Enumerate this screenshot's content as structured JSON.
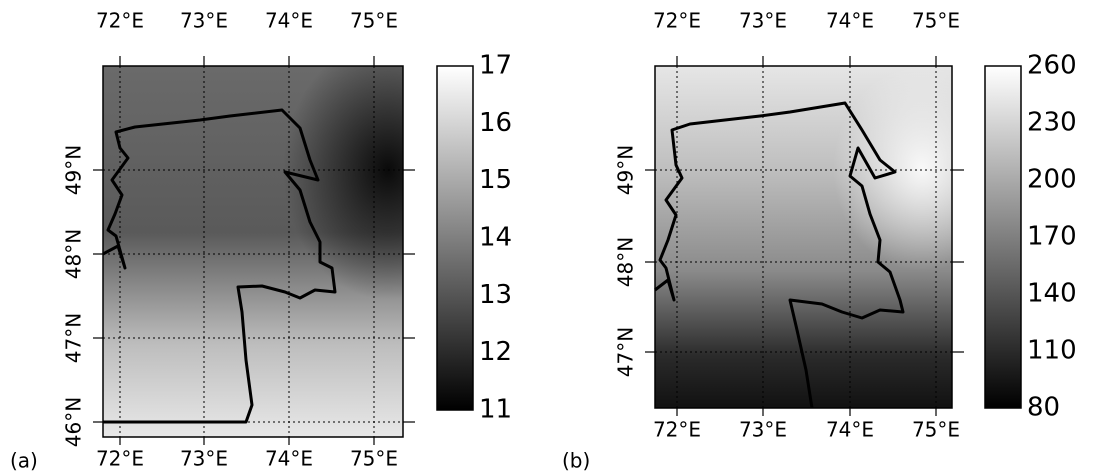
{
  "panels": [
    {
      "label": "(a)",
      "lon_top": [
        "72°E",
        "73°E",
        "74°E",
        "75°E"
      ],
      "lon_bottom": [
        "72°E",
        "73°E",
        "74°E",
        "75°E"
      ],
      "lat": [
        "49°N",
        "48°N",
        "47°N",
        "46°N"
      ],
      "colorbar": [
        17,
        16,
        15,
        14,
        13,
        12,
        11
      ]
    },
    {
      "label": "(b)",
      "lon_top": [
        "72°E",
        "73°E",
        "74°E",
        "75°E"
      ],
      "lon_bottom": [
        "72°E",
        "73°E",
        "74°E",
        "75°E"
      ],
      "lat": [
        "49°N",
        "48°N",
        "47°N"
      ],
      "colorbar": [
        260,
        230,
        200,
        170,
        140,
        110,
        80
      ]
    }
  ]
}
